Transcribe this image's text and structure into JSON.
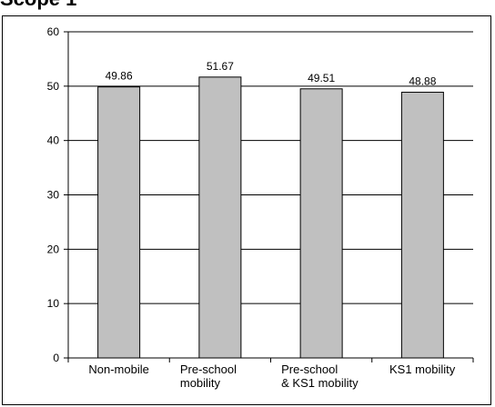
{
  "header": {
    "title_fragment": "Scope 1"
  },
  "chart_data": {
    "type": "bar",
    "categories": [
      [
        "Non-mobile"
      ],
      [
        "Pre-school",
        "mobility"
      ],
      [
        "Pre-school",
        "& KS1 mobility"
      ],
      [
        "KS1 mobility"
      ]
    ],
    "values": [
      49.86,
      51.67,
      49.51,
      48.88
    ],
    "value_labels": [
      "49.86",
      "51.67",
      "49.51",
      "48.88"
    ],
    "y_ticks": [
      "0",
      "10",
      "20",
      "30",
      "40",
      "50",
      "60"
    ],
    "ylim": [
      0,
      60
    ],
    "grid": true,
    "colors": {
      "bar_fill": "#c0c0c0",
      "bar_stroke": "#000000",
      "grid": "#000000"
    }
  }
}
